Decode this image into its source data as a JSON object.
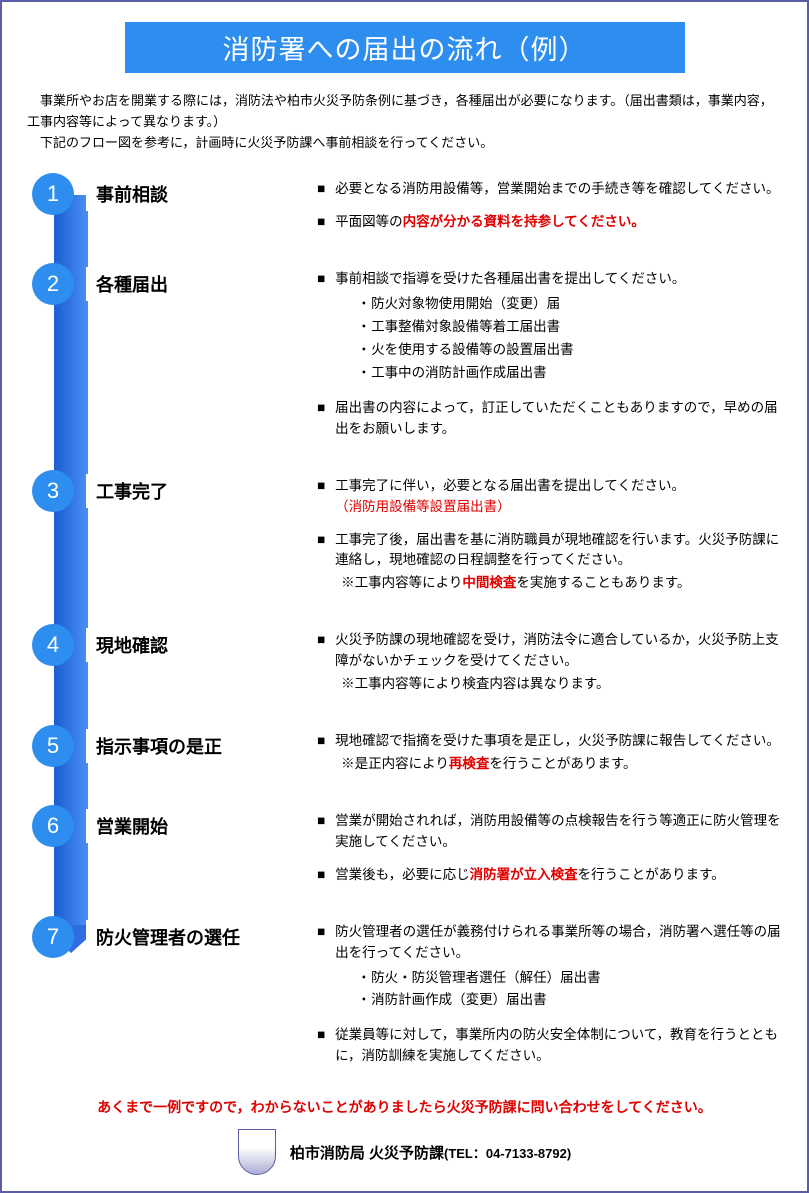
{
  "title": "消防署への届出の流れ（例）",
  "intro_lines": [
    "　事業所やお店を開業する際には，消防法や柏市火災予防条例に基づき，各種届出が必要になります。（届出書類は，事業内容，工事内容等によって異なります。）",
    "　下記のフロー図を参考に，計画時に火災予防課へ事前相談を行ってください。"
  ],
  "steps": [
    {
      "num": "1",
      "title": "事前相談",
      "bullets": [
        {
          "pre": "必要となる消防用設備等，営業開始までの手続き等を確認してください。"
        },
        {
          "pre": "平面図等の",
          "red": "内容が分かる資料を持参してください。"
        }
      ]
    },
    {
      "num": "2",
      "title": "各種届出",
      "bullets": [
        {
          "pre": "事前相談で指導を受けた各種届出書を提出してください。",
          "sub": [
            "防火対象物使用開始（変更）届",
            "工事整備対象設備等着工届出書",
            "火を使用する設備等の設置届出書",
            "工事中の消防計画作成届出書"
          ]
        },
        {
          "pre": "届出書の内容によって，訂正していただくこともありますので，早めの届出をお願いします。"
        }
      ]
    },
    {
      "num": "3",
      "title": "工事完了",
      "bullets": [
        {
          "pre": "工事完了に伴い，必要となる届出書を提出してください。",
          "paren_red": "（消防用設備等設置届出書）"
        },
        {
          "pre": "工事完了後，届出書を基に消防職員が現地確認を行います。火災予防課に連絡し，現地確認の日程調整を行ってください。",
          "note_pre": "※工事内容等により",
          "note_red": "中間検査",
          "note_post": "を実施することもあります。"
        }
      ]
    },
    {
      "num": "4",
      "title": "現地確認",
      "bullets": [
        {
          "pre": "火災予防課の現地確認を受け，消防法令に適合しているか，火災予防上支障がないかチェックを受けてください。",
          "note_plain": "※工事内容等により検査内容は異なります。"
        }
      ]
    },
    {
      "num": "5",
      "title": "指示事項の是正",
      "bullets": [
        {
          "pre": "現地確認で指摘を受けた事項を是正し，火災予防課に報告してください。",
          "note_pre": "※是正内容により",
          "note_red": "再検査",
          "note_post": "を行うことがあります。"
        }
      ]
    },
    {
      "num": "6",
      "title": "営業開始",
      "bullets": [
        {
          "pre": "営業が開始されれば，消防用設備等の点検報告を行う等適正に防火管理を実施してください。"
        },
        {
          "pre": "営業後も，必要に応じ",
          "red": "消防署が立入検査",
          "post": "を行うことがあります。"
        }
      ]
    },
    {
      "num": "7",
      "title": "防火管理者の選任",
      "bullets": [
        {
          "pre": "防火管理者の選任が義務付けられる事業所等の場合，消防署へ選任等の届出を行ってください。",
          "sub": [
            "防火・防災管理者選任（解任）届出書",
            "消防計画作成（変更）届出書"
          ]
        },
        {
          "pre": "従業員等に対して，事業所内の防火安全体制について，教育を行うとともに，消防訓練を実施してください。"
        }
      ]
    }
  ],
  "disclaimer": "あくまで一例ですので，わからないことがありましたら火災予防課に問い合わせをしてください。",
  "footer": {
    "org": "柏市消防局 火災予防課",
    "tel_label": "(TEL：",
    "tel": "04-7133-8792",
    "tel_close": ")"
  },
  "colors": {
    "banner_bg": "#2e8eef",
    "circle_bg": "#2e8eef",
    "red": "#e00000",
    "border": "#5b5ea6"
  }
}
